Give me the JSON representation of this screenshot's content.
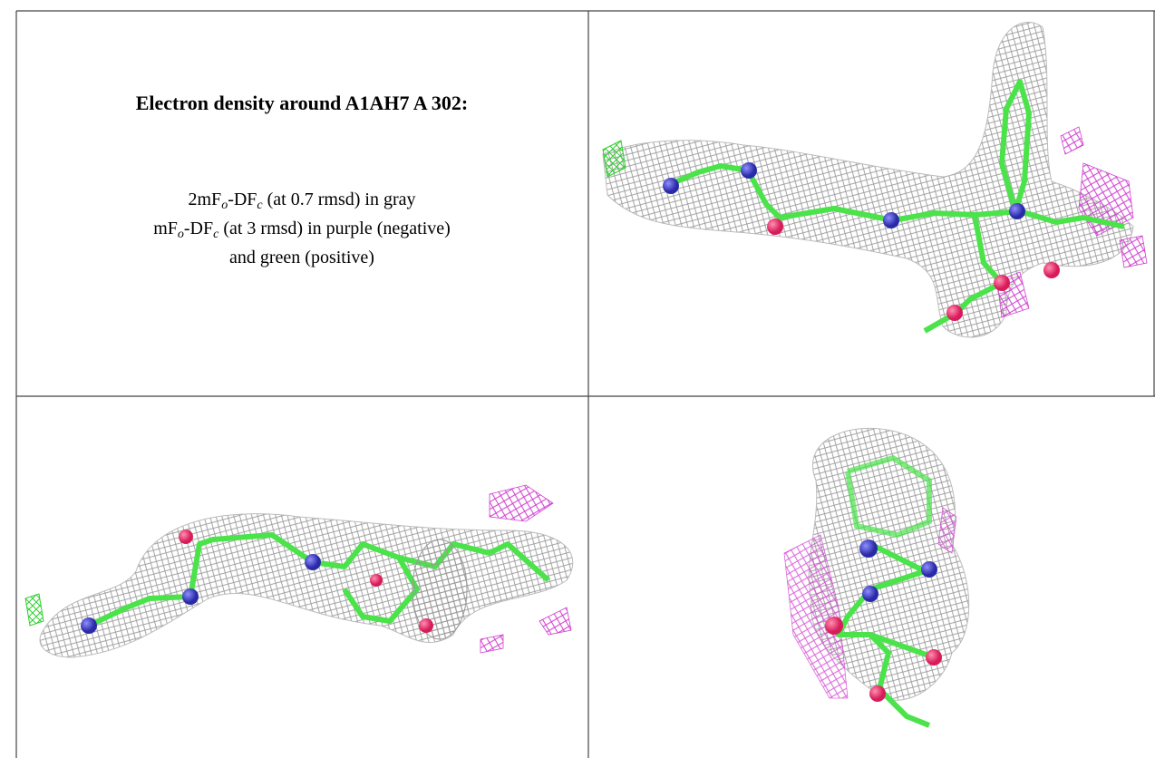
{
  "title": "Electron density around A1AH7 A 302:",
  "legend": [
    [
      {
        "text": "2mF"
      },
      {
        "sub": "o"
      },
      {
        "text": "-DF"
      },
      {
        "sub": "c"
      },
      {
        "text": " (at 0.7 rmsd) in gray"
      }
    ],
    [
      {
        "text": "mF"
      },
      {
        "sub": "o"
      },
      {
        "text": "-DF"
      },
      {
        "sub": "c"
      },
      {
        "text": " (at 3 rmsd) in purple (negative)"
      }
    ],
    [
      {
        "text": "and green (positive)"
      }
    ]
  ]
}
